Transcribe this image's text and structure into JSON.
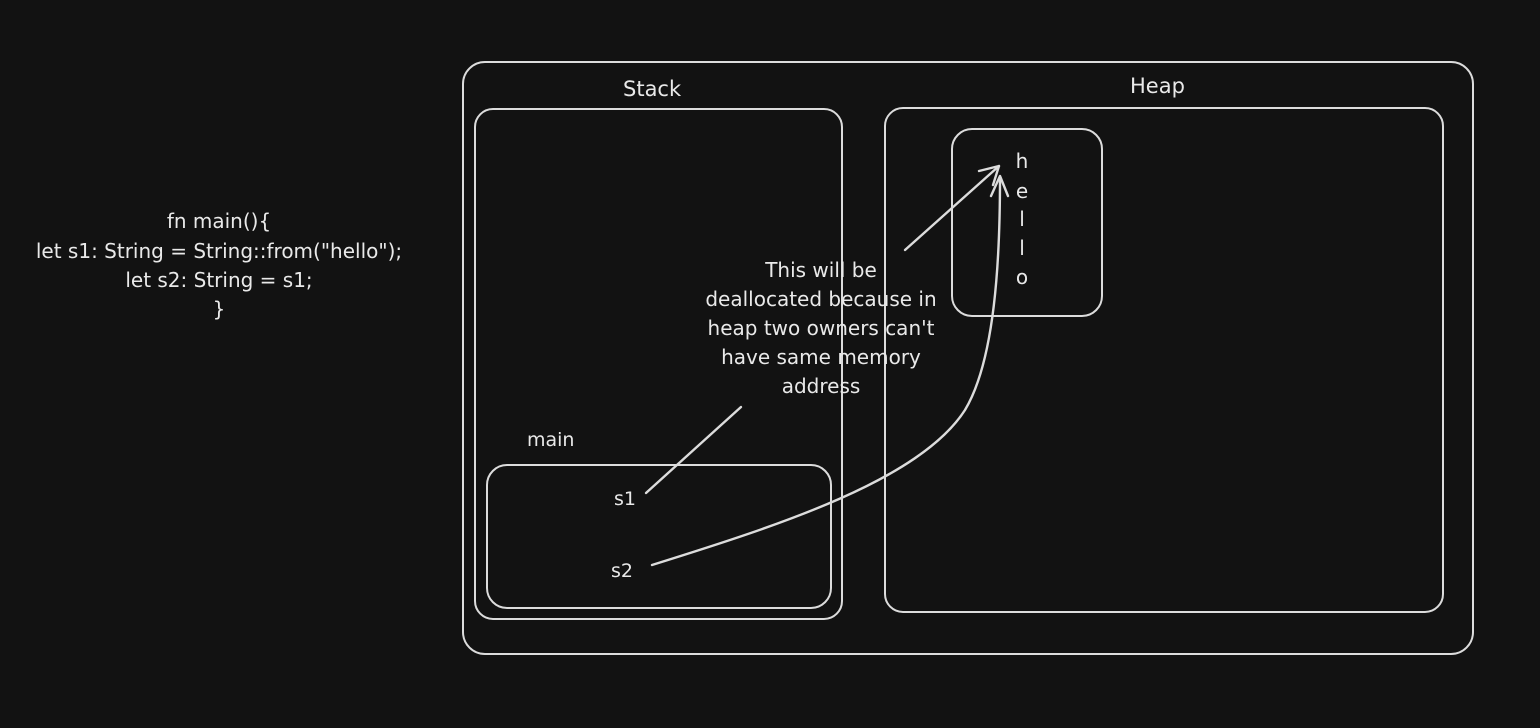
{
  "code": {
    "line1": "fn main(){",
    "line2": "let s1: String = String::from(\"hello\");",
    "line3": "let s2: String = s1;",
    "line4": "}"
  },
  "stack_label": "Stack",
  "heap_label": "Heap",
  "frame_label": "main",
  "variables": {
    "s1": "s1",
    "s2": "s2"
  },
  "heap_value": [
    "h",
    "e",
    "l",
    "l",
    "o"
  ],
  "annotation": {
    "line1": "This will be",
    "line2": "deallocated because in",
    "line3": "heap two owners can't",
    "line4": "have same memory",
    "line5": "address"
  },
  "colors": {
    "background": "#121212",
    "stroke": "#dcdcdc",
    "text": "#e9e9e9"
  }
}
